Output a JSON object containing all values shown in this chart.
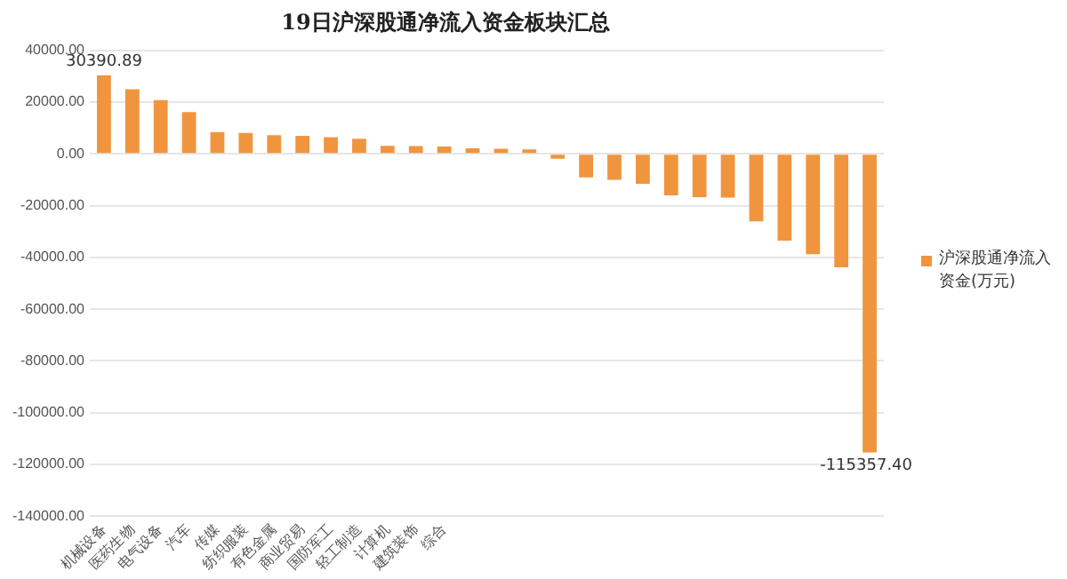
{
  "chart_data": {
    "type": "bar",
    "title": "19日沪深股通净流入资金板块汇总",
    "categories": [
      "机械设备",
      "医药生物",
      "电气设备",
      "汽车",
      "传媒",
      "纺织服装",
      "有色金属",
      "商业贸易",
      "国防军工",
      "轻工制造",
      "计算机",
      "建筑装饰",
      "综合",
      null,
      null,
      null,
      null,
      null,
      null,
      null,
      null,
      null,
      null,
      null,
      null,
      null,
      null,
      null
    ],
    "series": [
      {
        "name": "沪深股通净流入资金(万元)",
        "color": "#f0953e",
        "values": [
          30390.89,
          25000,
          20800,
          16200,
          8400,
          8100,
          7200,
          7000,
          6500,
          5900,
          3100,
          3000,
          2900,
          2200,
          2000,
          1700,
          -1900,
          -9100,
          -10000,
          -11600,
          -16000,
          -16700,
          -16900,
          -26100,
          -33500,
          -38800,
          -43800,
          -115357.4
        ],
        "value_labels": [
          "30390.89",
          null,
          null,
          null,
          null,
          null,
          null,
          null,
          null,
          null,
          null,
          null,
          null,
          null,
          null,
          null,
          null,
          null,
          null,
          null,
          null,
          null,
          null,
          null,
          null,
          null,
          null,
          "-115357.40"
        ]
      }
    ],
    "ylim": [
      -140000,
      40000
    ],
    "yticks": [
      {
        "value": -140000,
        "label": "-140000.00"
      },
      {
        "value": -120000,
        "label": "-120000.00"
      },
      {
        "value": -100000,
        "label": "-100000.00"
      },
      {
        "value": -80000,
        "label": "-80000.00"
      },
      {
        "value": -60000,
        "label": "-60000.00"
      },
      {
        "value": -40000,
        "label": "-40000.00"
      },
      {
        "value": -20000,
        "label": "-20000.00"
      },
      {
        "value": 0,
        "label": "0.00"
      },
      {
        "value": 20000,
        "label": "20000.00"
      },
      {
        "value": 40000,
        "label": "40000.00"
      }
    ],
    "grid": "y",
    "legend": "right"
  }
}
